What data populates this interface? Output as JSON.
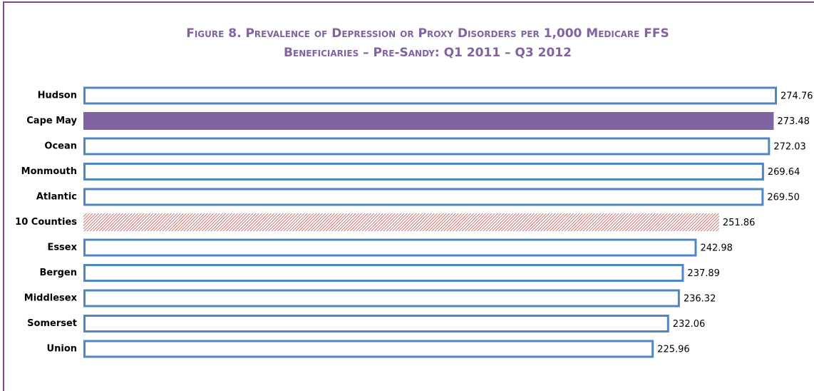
{
  "chart_data": {
    "type": "hbar",
    "title": "Figure 8. Prevalence of Depression or Proxy Disorders per 1,000 Medicare FFS Beneficiaries – Pre-Sandy: Q1 2011 – Q3 2012",
    "categories": [
      "Hudson",
      "Cape May",
      "Ocean",
      "Monmouth",
      "Atlantic",
      "10 Counties",
      "Essex",
      "Bergen",
      "Middlesex",
      "Somerset",
      "Union"
    ],
    "values": [
      274.76,
      273.48,
      272.03,
      269.64,
      269.5,
      251.86,
      242.98,
      237.89,
      236.32,
      232.06,
      225.96
    ],
    "value_labels": [
      "274.76",
      "273.48",
      "272.03",
      "269.64",
      "269.50",
      "251.86",
      "242.98",
      "237.89",
      "236.32",
      "232.06",
      "225.96"
    ],
    "colors": [
      "#4f86c6",
      "#8064a2",
      "#4f86c6",
      "#4f86c6",
      "#4f86c6",
      "#c0504d",
      "#4f86c6",
      "#4f86c6",
      "#4f86c6",
      "#4f86c6",
      "#4f86c6"
    ],
    "styles": [
      "outline",
      "solid",
      "outline",
      "outline",
      "outline",
      "hatch",
      "outline",
      "outline",
      "outline",
      "outline",
      "outline"
    ]
  }
}
